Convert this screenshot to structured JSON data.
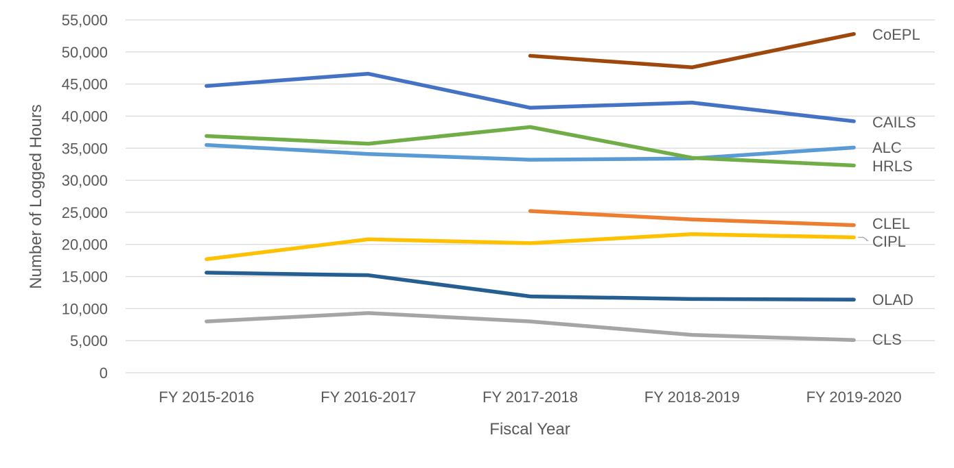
{
  "chart_data": {
    "type": "line",
    "title": "",
    "xlabel": "Fiscal Year",
    "ylabel": "Number of Logged Hours",
    "ylim": [
      0,
      55000
    ],
    "ytick_step": 5000,
    "ytick_labels": [
      "0",
      "5,000",
      "10,000",
      "15,000",
      "20,000",
      "25,000",
      "30,000",
      "35,000",
      "40,000",
      "45,000",
      "50,000",
      "55,000"
    ],
    "grid": true,
    "legend": "inline labels at right end of lines",
    "categories": [
      "FY 2015-2016",
      "FY 2016-2017",
      "FY 2017-2018",
      "FY 2018-2019",
      "FY 2019-2020"
    ],
    "series": [
      {
        "name": "CoEPL",
        "color": "#9E480E",
        "values": [
          null,
          null,
          49400,
          47600,
          52800
        ]
      },
      {
        "name": "CAILS",
        "color": "#4472C4",
        "values": [
          44700,
          46600,
          41300,
          42100,
          39200
        ]
      },
      {
        "name": "ALC",
        "color": "#5B9BD5",
        "values": [
          35500,
          34100,
          33200,
          33400,
          35100
        ]
      },
      {
        "name": "HRLS",
        "color": "#70AD47",
        "values": [
          36900,
          35700,
          38300,
          33500,
          32300
        ]
      },
      {
        "name": "CLEL",
        "color": "#ED7D31",
        "values": [
          null,
          null,
          25200,
          23900,
          23000
        ]
      },
      {
        "name": "CIPL",
        "color": "#FFC000",
        "values": [
          17700,
          20800,
          20200,
          21600,
          21100
        ]
      },
      {
        "name": "OLAD",
        "color": "#255E91",
        "values": [
          15600,
          15200,
          11900,
          11500,
          11400
        ]
      },
      {
        "name": "CLS",
        "color": "#A5A5A5",
        "values": [
          8000,
          9300,
          8000,
          5900,
          5100
        ]
      }
    ]
  }
}
